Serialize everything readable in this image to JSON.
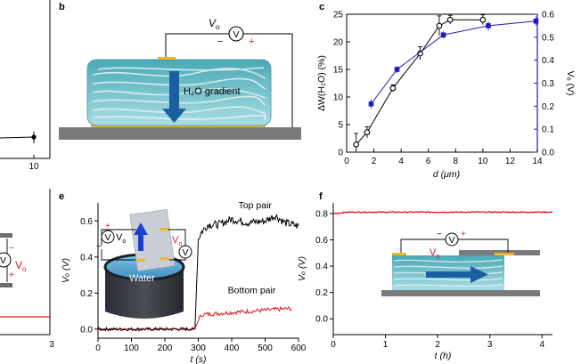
{
  "panel_letters": {
    "b": "b",
    "c": "c",
    "e": "e",
    "f": "f"
  },
  "fragments": {
    "left_top_tick": "10",
    "left_bottom_tick": "3",
    "left_bottom_vo": "V",
    "left_bottom_vo_sub": "o",
    "left_bottom_plus": "+",
    "left_bottom_minus": "−"
  },
  "schematic_b": {
    "vo": "V",
    "vo_sub": "o",
    "minus": "−",
    "plus": "+",
    "meter": "V",
    "gradient_label": "H₂O gradient"
  },
  "inset_e": {
    "water": "Water",
    "vo_left": "V",
    "vo_left_sub": "o",
    "vo_right": "V",
    "vo_right_sub": "o",
    "meter": "V",
    "plus": "+",
    "minus": "−"
  },
  "inset_f": {
    "vo": "V",
    "vo_sub": "o",
    "minus": "−",
    "plus": "+",
    "meter": "V"
  },
  "colors": {
    "black_series": "#000000",
    "blue_series": "#1d1dbf",
    "red_series": "#e0141c",
    "film_teal": "#7fc6d0",
    "electrode_gold": "#f0b428",
    "substrate_gray": "#7a7a7a",
    "arrow_blue": "#1a5fa0"
  },
  "chart_data": [
    {
      "panel": "c",
      "type": "line",
      "xlabel": "d (μm)",
      "ylabel": "ΔW(H₂O) (%)",
      "y2label": "Vₒ (V)",
      "xlim": [
        0,
        14
      ],
      "ylim": [
        0,
        25
      ],
      "y2lim": [
        0,
        0.6
      ],
      "xticks": [
        "0",
        "2",
        "4",
        "6",
        "8",
        "10",
        "12",
        "14"
      ],
      "yticks": [
        "0",
        "5",
        "10",
        "15",
        "20",
        "25"
      ],
      "y2ticks": [
        "0.0",
        "0.1",
        "0.2",
        "0.3",
        "0.4",
        "0.5",
        "0.6"
      ],
      "series": [
        {
          "axis": "left",
          "marker": "circle",
          "x": [
            0.7,
            1.5,
            3.4,
            5.4,
            6.8,
            7.6,
            10.0
          ],
          "y": [
            1.4,
            3.6,
            11.6,
            17.9,
            22.9,
            24.0,
            24.0
          ],
          "err": [
            2.0,
            1.0,
            0.6,
            1.2,
            1.8,
            0.8,
            0.9
          ]
        },
        {
          "axis": "right",
          "marker": "square",
          "x": [
            1.8,
            3.7,
            7.1,
            10.4,
            13.9
          ],
          "y": [
            0.21,
            0.36,
            0.51,
            0.55,
            0.57
          ],
          "err": [
            0.02,
            0.015,
            0.015,
            0.02,
            0.02
          ]
        }
      ]
    },
    {
      "panel": "e",
      "type": "line",
      "xlabel": "t (s)",
      "ylabel": "Vₒ (V)",
      "xlim": [
        0,
        600
      ],
      "ylim": [
        -0.05,
        0.7
      ],
      "xticks": [
        "0",
        "100",
        "200",
        "300",
        "400",
        "500",
        "600"
      ],
      "yticks": [
        "0.0",
        "0.2",
        "0.4",
        "0.6"
      ],
      "series": [
        {
          "name": "Top pair",
          "x": [
            0,
            290,
            300,
            310,
            330,
            360,
            400,
            450,
            500,
            530,
            560,
            600
          ],
          "y": [
            0,
            0,
            0.5,
            0.54,
            0.58,
            0.58,
            0.61,
            0.59,
            0.6,
            0.63,
            0.59,
            0.57
          ]
        },
        {
          "name": "Bottom pair",
          "x": [
            0,
            290,
            300,
            310,
            340,
            380,
            420,
            460,
            500,
            540,
            580
          ],
          "y": [
            0,
            0,
            0.05,
            0.08,
            0.085,
            0.09,
            0.095,
            0.1,
            0.105,
            0.11,
            0.115
          ]
        }
      ]
    },
    {
      "panel": "f",
      "type": "line",
      "xlabel": "t (h)",
      "ylabel": "Vₒ (V)",
      "xlim": [
        0,
        4.2
      ],
      "ylim": [
        -0.12,
        0.88
      ],
      "xticks": [
        "0",
        "1",
        "2",
        "3",
        "4"
      ],
      "yticks": [
        "0.0",
        "0.2",
        "0.4",
        "0.6",
        "0.8"
      ],
      "series": [
        {
          "x": [
            0,
            0.3,
            1,
            2,
            3,
            4,
            4.2
          ],
          "y": [
            0.8,
            0.81,
            0.81,
            0.81,
            0.81,
            0.81,
            0.81
          ]
        }
      ]
    }
  ]
}
